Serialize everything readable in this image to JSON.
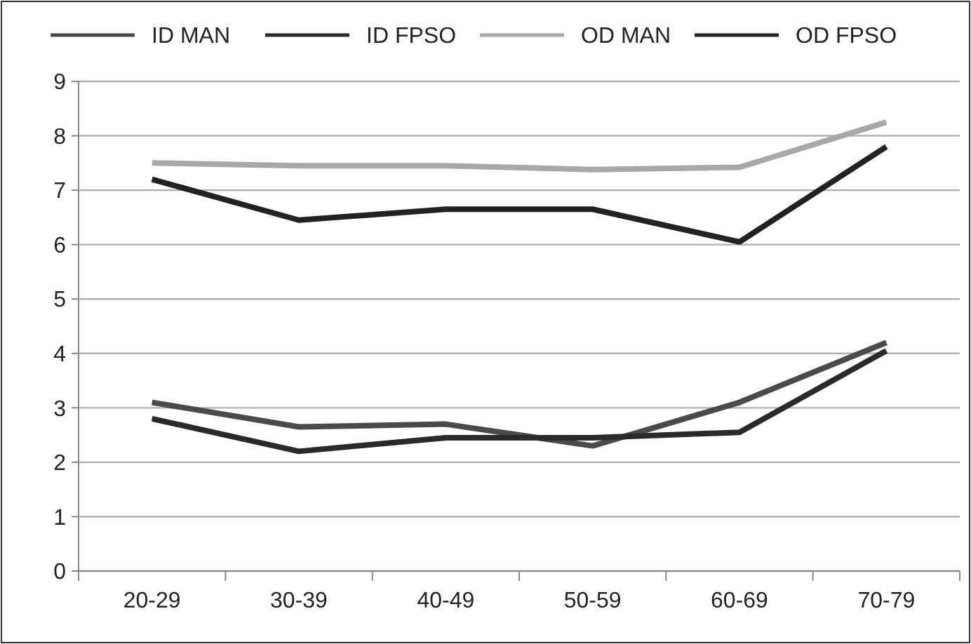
{
  "chart_data": {
    "type": "line",
    "categories": [
      "20-29",
      "30-39",
      "40-49",
      "50-59",
      "60-69",
      "70-79"
    ],
    "series": [
      {
        "name": "ID MAN",
        "color": "#4a4a4a",
        "values": [
          3.1,
          2.65,
          2.7,
          2.3,
          3.1,
          4.2
        ]
      },
      {
        "name": "ID FPSO",
        "color": "#2a2a2a",
        "values": [
          2.8,
          2.2,
          2.45,
          2.45,
          2.55,
          4.05
        ]
      },
      {
        "name": "OD MAN",
        "color": "#a8a8a8",
        "values": [
          7.5,
          7.45,
          7.45,
          7.38,
          7.42,
          8.25
        ]
      },
      {
        "name": "OD FPSO",
        "color": "#222222",
        "values": [
          7.2,
          6.45,
          6.65,
          6.65,
          6.05,
          7.8
        ]
      }
    ],
    "ylim": [
      0,
      9
    ],
    "yticks": [
      0,
      1,
      2,
      3,
      4,
      5,
      6,
      7,
      8,
      9
    ],
    "grid": "y",
    "legend": "top",
    "marker": "none",
    "line_style": "solid"
  }
}
